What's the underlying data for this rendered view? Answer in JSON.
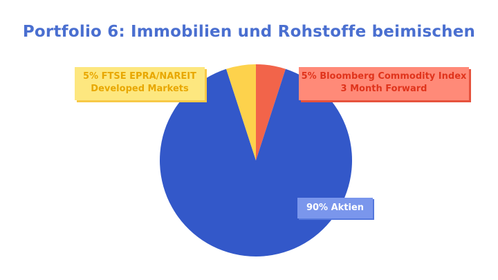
{
  "chart_data": {
    "type": "pie",
    "title": "Portfolio 6: Immobilien und Rohstoffe beimischen",
    "slices": [
      {
        "label": "5% Bloomberg Commodity Index 3 Month Forward",
        "value": 5,
        "color": "#f2644a"
      },
      {
        "label": "90% Aktien",
        "value": 90,
        "color": "#3358c9"
      },
      {
        "label": "5% FTSE EPRA/NAREIT Developed Markets",
        "value": 5,
        "color": "#fdd24c"
      }
    ]
  }
}
